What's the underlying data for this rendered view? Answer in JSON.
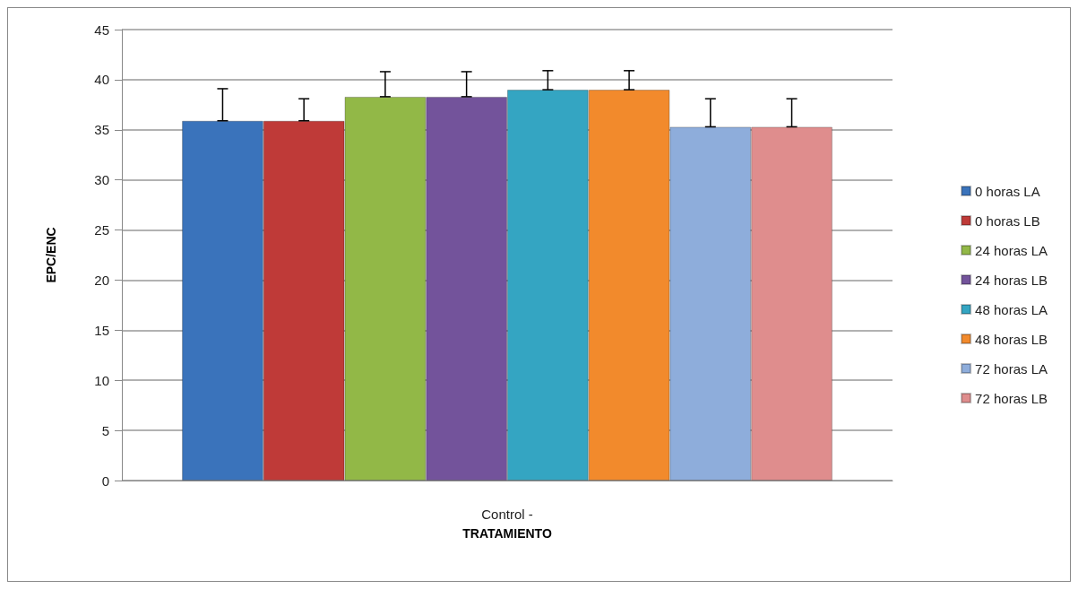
{
  "chart_data": {
    "type": "bar",
    "xlabel": "TRATAMIENTO",
    "ylabel": "EPC/ENC",
    "categories": [
      "Control -"
    ],
    "series": [
      {
        "name": "0 horas LA",
        "color": "#3a73bb",
        "values": [
          35.9
        ],
        "errors": [
          [
            35.9,
            39.1
          ]
        ]
      },
      {
        "name": "0 horas LB",
        "color": "#bf3a38",
        "values": [
          35.9
        ],
        "errors": [
          [
            35.9,
            38.1
          ]
        ]
      },
      {
        "name": "24 horas LA",
        "color": "#92b847",
        "values": [
          38.3
        ],
        "errors": [
          [
            38.3,
            40.8
          ]
        ]
      },
      {
        "name": "24 horas LB",
        "color": "#73539b",
        "values": [
          38.3
        ],
        "errors": [
          [
            38.3,
            40.8
          ]
        ]
      },
      {
        "name": "48 horas LA",
        "color": "#34a5c2",
        "values": [
          39.0
        ],
        "errors": [
          [
            39.0,
            40.9
          ]
        ]
      },
      {
        "name": "48 horas LB",
        "color": "#f28a2c",
        "values": [
          39.0
        ],
        "errors": [
          [
            39.0,
            40.9
          ]
        ]
      },
      {
        "name": "72 horas LA",
        "color": "#8eaddb",
        "values": [
          35.3
        ],
        "errors": [
          [
            35.3,
            38.1
          ]
        ]
      },
      {
        "name": "72 horas LB",
        "color": "#df8d8d",
        "values": [
          35.3
        ],
        "errors": [
          [
            35.3,
            38.1
          ]
        ]
      }
    ],
    "ylim": [
      0,
      45
    ],
    "yticks": [
      0,
      5,
      10,
      15,
      20,
      25,
      30,
      35,
      40,
      45
    ],
    "grid": "y",
    "legend": "right"
  }
}
